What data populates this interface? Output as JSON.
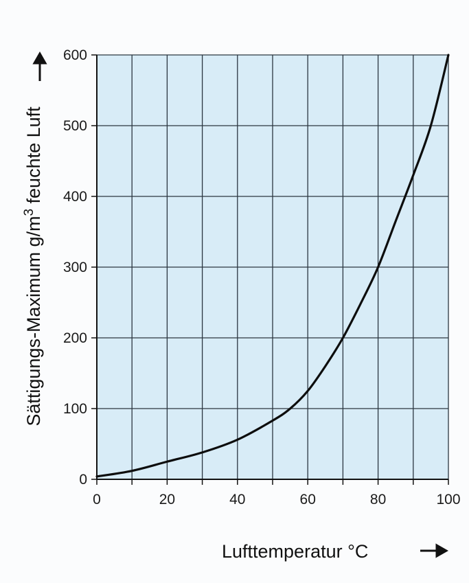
{
  "chart_data": {
    "type": "line",
    "title": "",
    "xlabel": "Lufttemperatur °C",
    "ylabel": "Sättigungs-Maximum g/m³ feuchte Luft",
    "xlim": [
      0,
      100
    ],
    "ylim": [
      0,
      600
    ],
    "xticks": [
      0,
      20,
      40,
      60,
      80,
      100
    ],
    "yticks": [
      0,
      100,
      200,
      300,
      400,
      500,
      600
    ],
    "x_gridlines": [
      0,
      10,
      20,
      30,
      40,
      50,
      60,
      70,
      80,
      90,
      100
    ],
    "y_gridlines": [
      0,
      100,
      200,
      300,
      400,
      500,
      600
    ],
    "grid": true,
    "series": [
      {
        "x": [
          0,
          10,
          20,
          30,
          40,
          50,
          55,
          60,
          65,
          70,
          75,
          80,
          85,
          90,
          95,
          100
        ],
        "y": [
          4,
          12,
          25,
          38,
          56,
          83,
          100,
          125,
          160,
          200,
          248,
          300,
          365,
          430,
          500,
          600
        ]
      }
    ]
  },
  "colors": {
    "plot_background": "#d8ecf7",
    "grid": "#2b3640",
    "curve": "#0d0d0d",
    "page_background": "#fbfcfd"
  }
}
